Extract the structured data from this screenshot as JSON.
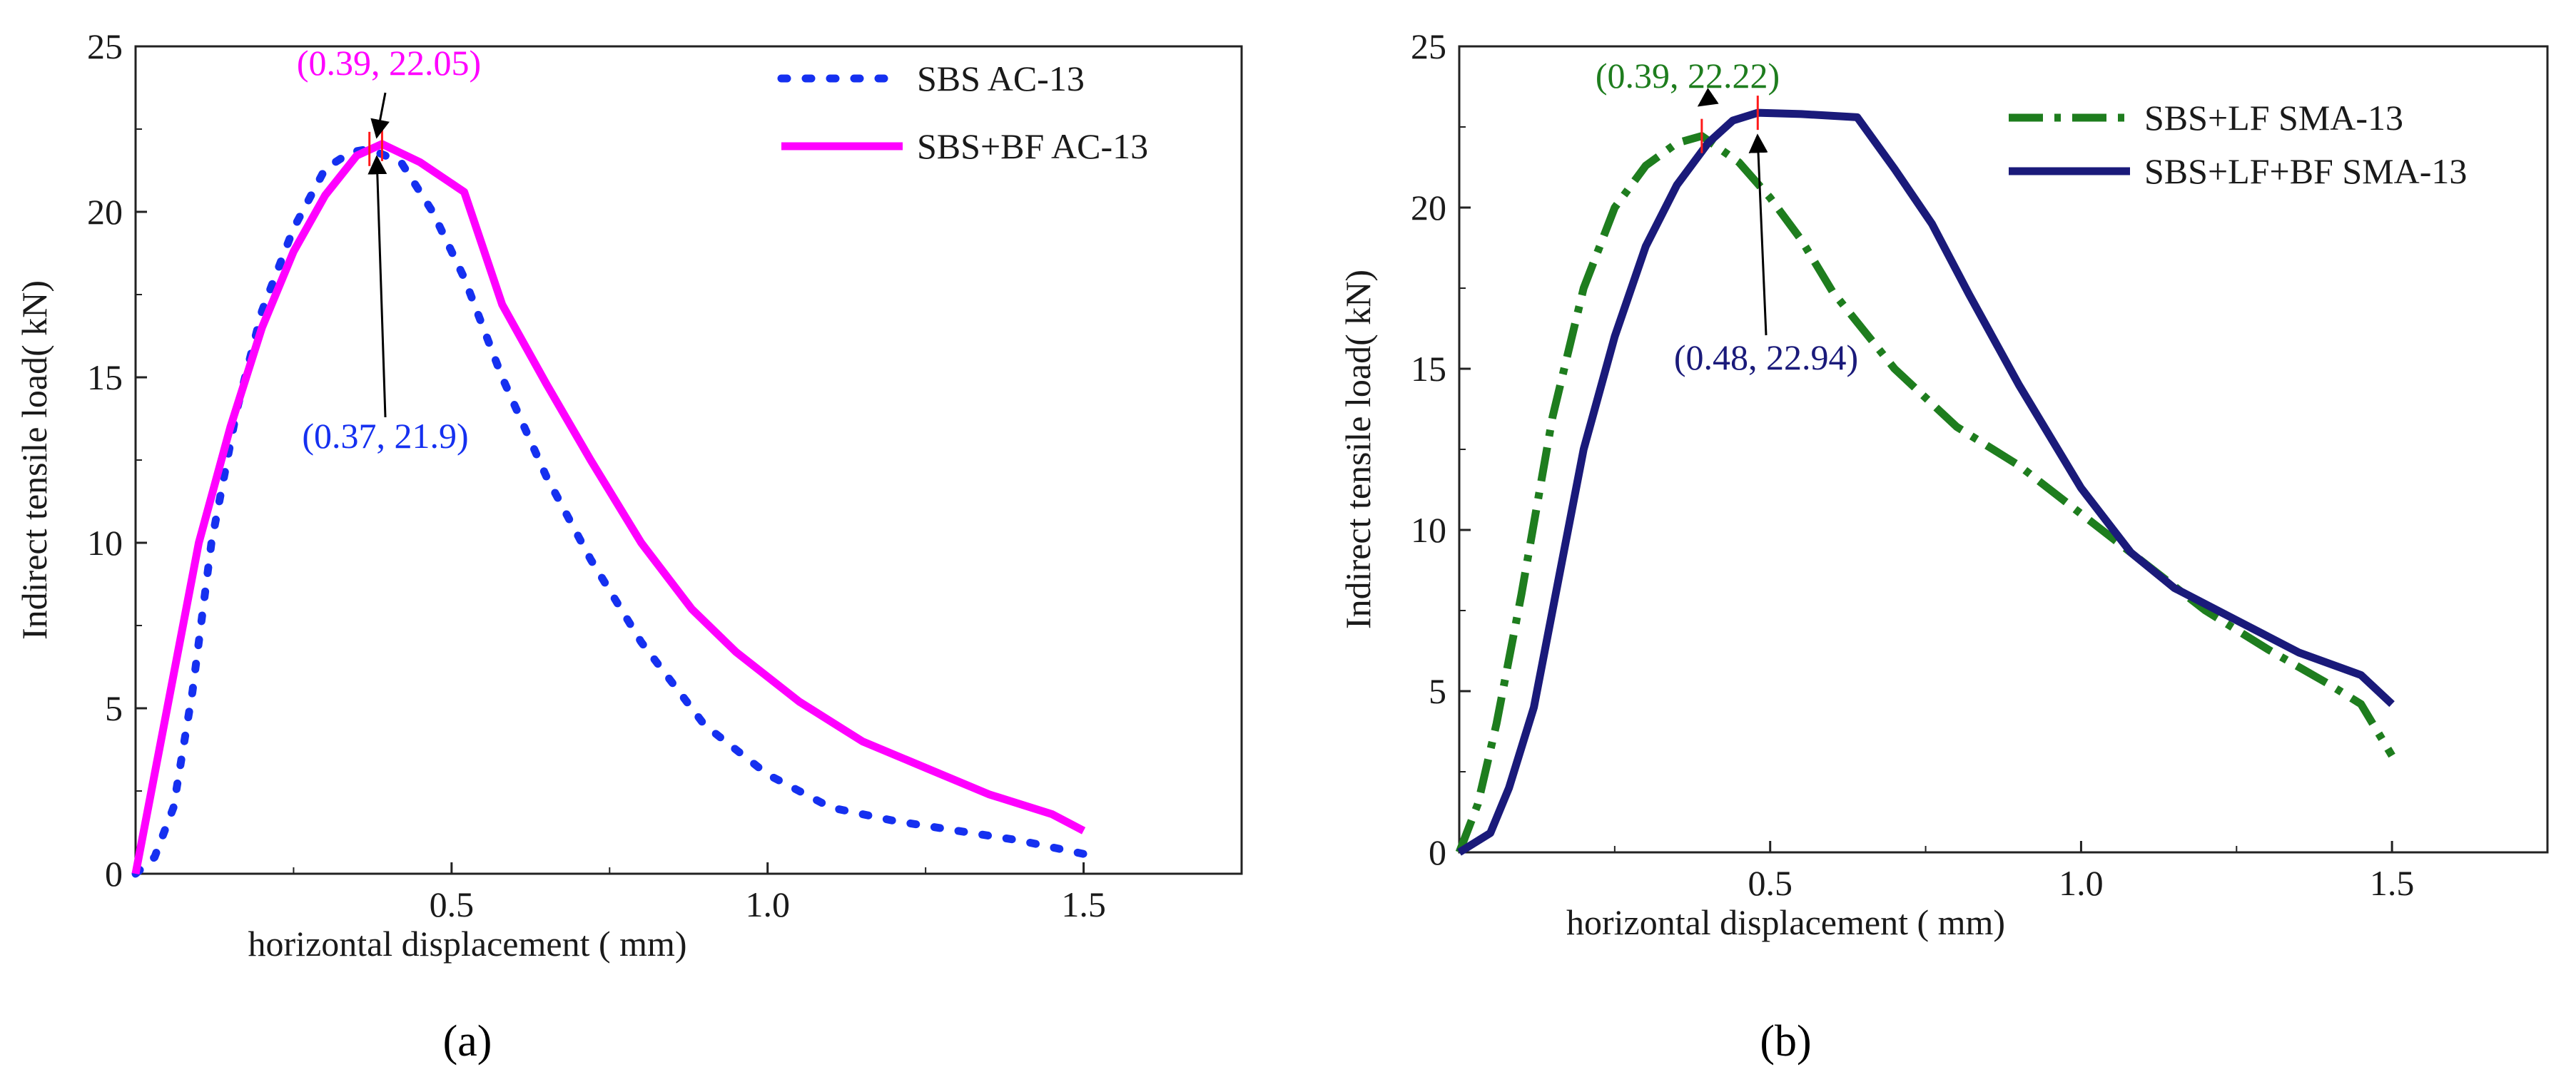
{
  "chart_data": [
    {
      "type": "line",
      "panel_label": "(a)",
      "xlabel": "horizontal displacement (   mm)",
      "ylabel": "Indirect tensile load(  kN)",
      "xlim": [
        0,
        1.75
      ],
      "ylim": [
        0,
        25
      ],
      "xticks": [
        0.5,
        1.0,
        1.5
      ],
      "xtick_labels": [
        "0.5",
        "1.0",
        "1.5"
      ],
      "yticks": [
        0,
        5,
        10,
        15,
        20,
        25
      ],
      "ytick_labels": [
        "0",
        "5",
        "10",
        "15",
        "20",
        "25"
      ],
      "grid": false,
      "legend_position": "top-right",
      "series": [
        {
          "name": "SBS AC-13",
          "style": "dotted",
          "color": "#1530f0",
          "x": [
            0.0,
            0.03,
            0.06,
            0.09,
            0.12,
            0.16,
            0.2,
            0.25,
            0.3,
            0.34,
            0.37,
            0.42,
            0.47,
            0.52,
            0.58,
            0.65,
            0.72,
            0.8,
            0.9,
            1.0,
            1.1,
            1.2,
            1.3,
            1.4,
            1.5
          ],
          "y": [
            0.0,
            0.5,
            2.0,
            5.5,
            10.0,
            14.0,
            17.0,
            19.5,
            21.3,
            21.8,
            21.9,
            21.5,
            20.0,
            18.0,
            15.0,
            12.0,
            9.5,
            7.0,
            4.5,
            3.0,
            2.0,
            1.6,
            1.3,
            1.0,
            0.6
          ]
        },
        {
          "name": "SBS+BF AC-13",
          "style": "solid",
          "color": "#ff00ff",
          "x": [
            0.0,
            0.05,
            0.1,
            0.15,
            0.2,
            0.25,
            0.3,
            0.35,
            0.39,
            0.45,
            0.52,
            0.58,
            0.65,
            0.72,
            0.8,
            0.88,
            0.95,
            1.05,
            1.15,
            1.25,
            1.35,
            1.45,
            1.5
          ],
          "y": [
            0.0,
            5.0,
            10.0,
            13.5,
            16.5,
            18.8,
            20.5,
            21.7,
            22.05,
            21.5,
            20.6,
            17.2,
            14.8,
            12.5,
            10.0,
            8.0,
            6.7,
            5.2,
            4.0,
            3.2,
            2.4,
            1.8,
            1.3
          ]
        }
      ],
      "annotations": [
        {
          "text": "(0.39, 22.05)",
          "x": 0.39,
          "y": 22.05,
          "color": "#ff00ff"
        },
        {
          "text": "(0.37, 21.9)",
          "x": 0.37,
          "y": 21.9,
          "color": "#1530f0"
        }
      ]
    },
    {
      "type": "line",
      "panel_label": "(b)",
      "xlabel": "horizontal displacement (   mm)",
      "ylabel": "Indirect tensile load(  kN)",
      "xlim": [
        0,
        1.75
      ],
      "ylim": [
        0,
        25
      ],
      "xticks": [
        0.5,
        1.0,
        1.5
      ],
      "xtick_labels": [
        "0.5",
        "1.0",
        "1.5"
      ],
      "yticks": [
        0,
        5,
        10,
        15,
        20,
        25
      ],
      "ytick_labels": [
        "0",
        "5",
        "10",
        "15",
        "20",
        "25"
      ],
      "grid": false,
      "legend_position": "top-right",
      "series": [
        {
          "name": "SBS+LF SMA-13",
          "style": "dash-dot",
          "color": "#1e7d1e",
          "x": [
            0.0,
            0.03,
            0.06,
            0.1,
            0.15,
            0.2,
            0.25,
            0.3,
            0.35,
            0.39,
            0.45,
            0.5,
            0.55,
            0.6,
            0.7,
            0.8,
            0.9,
            1.0,
            1.1,
            1.2,
            1.3,
            1.4,
            1.45,
            1.5
          ],
          "y": [
            0.0,
            1.5,
            4.0,
            8.0,
            13.5,
            17.5,
            20.0,
            21.3,
            22.0,
            22.22,
            21.4,
            20.3,
            19.0,
            17.4,
            15.0,
            13.2,
            12.0,
            10.5,
            9.0,
            7.5,
            6.3,
            5.2,
            4.6,
            3.0
          ]
        },
        {
          "name": "SBS+LF+BF SMA-13",
          "style": "solid",
          "color": "#1a1a7a",
          "x": [
            0.0,
            0.05,
            0.08,
            0.12,
            0.16,
            0.2,
            0.25,
            0.3,
            0.35,
            0.4,
            0.44,
            0.48,
            0.55,
            0.64,
            0.7,
            0.76,
            0.82,
            0.9,
            1.0,
            1.08,
            1.15,
            1.25,
            1.35,
            1.45,
            1.5
          ],
          "y": [
            0.0,
            0.6,
            2.0,
            4.5,
            8.5,
            12.5,
            16.0,
            18.8,
            20.7,
            22.0,
            22.7,
            22.94,
            22.9,
            22.8,
            21.2,
            19.5,
            17.3,
            14.5,
            11.3,
            9.3,
            8.2,
            7.2,
            6.2,
            5.5,
            4.6
          ]
        }
      ],
      "annotations": [
        {
          "text": "(0.39, 22.22)",
          "x": 0.39,
          "y": 22.22,
          "color": "#1e7d1e"
        },
        {
          "text": "(0.48, 22.94)",
          "x": 0.48,
          "y": 22.94,
          "color": "#1a1a7a"
        }
      ]
    }
  ]
}
